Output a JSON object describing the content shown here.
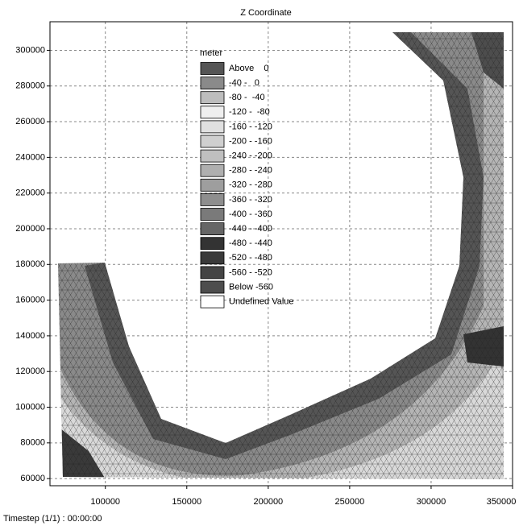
{
  "chart_data": {
    "type": "contour",
    "title": "Z Coordinate",
    "footer": "Timestep (1/1) : 00:00:00",
    "xlim": [
      66000,
      350000
    ],
    "ylim": [
      56000,
      316000
    ],
    "xticks": [
      100000,
      150000,
      200000,
      250000,
      300000,
      350000
    ],
    "yticks": [
      60000,
      80000,
      100000,
      120000,
      140000,
      160000,
      180000,
      200000,
      220000,
      240000,
      260000,
      280000,
      300000
    ],
    "grid": true,
    "legend": {
      "title": "meter",
      "entries": [
        {
          "label": "Above    0",
          "color": "#555555"
        },
        {
          "label": "-40 -   0",
          "color": "#8a8a8a"
        },
        {
          "label": "-80 -  -40",
          "color": "#bdbdbd"
        },
        {
          "label": "-120 -  -80",
          "color": "#efefef"
        },
        {
          "label": "-160 - -120",
          "color": "#e0e0e0"
        },
        {
          "label": "-200 - -160",
          "color": "#cfcfcf"
        },
        {
          "label": "-240 - -200",
          "color": "#bfbfbf"
        },
        {
          "label": "-280 - -240",
          "color": "#afafaf"
        },
        {
          "label": "-320 - -280",
          "color": "#9e9e9e"
        },
        {
          "label": "-360 - -320",
          "color": "#8e8e8e"
        },
        {
          "label": "-400 - -360",
          "color": "#7a7a7a"
        },
        {
          "label": "-440 - -400",
          "color": "#666666"
        },
        {
          "label": "-480 - -440",
          "color": "#333333"
        },
        {
          "label": "-520 - -480",
          "color": "#3a3a3a"
        },
        {
          "label": "-560 - -520",
          "color": "#444444"
        },
        {
          "label": "Below -560",
          "color": "#4d4d4d"
        },
        {
          "label": "Undefined Value",
          "color": "#ffffff"
        }
      ]
    }
  }
}
